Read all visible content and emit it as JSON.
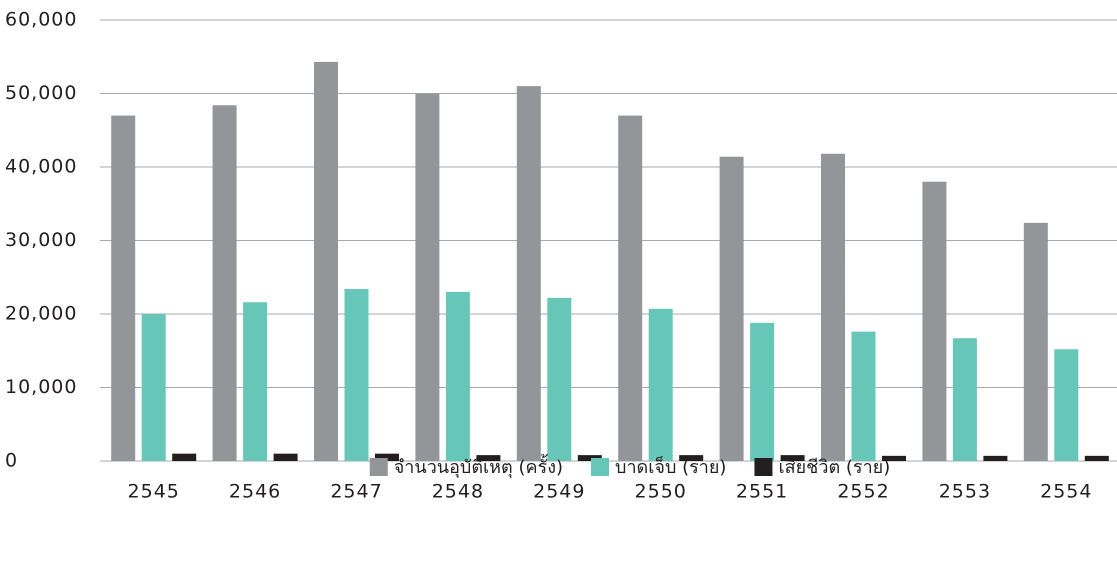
{
  "chart_data": {
    "type": "bar",
    "categories": [
      "2545",
      "2546",
      "2547",
      "2548",
      "2549",
      "2550",
      "2551",
      "2552",
      "2553",
      "2554"
    ],
    "series": [
      {
        "name": "จำนวนอุบัติเหตุ (ครั้ง)",
        "color": "#939598",
        "values": [
          47000,
          48400,
          54300,
          50000,
          51000,
          47000,
          41400,
          41800,
          38000,
          32400
        ]
      },
      {
        "name": "บาดเจ็บ (ราย)",
        "color": "#66c7b8",
        "values": [
          20000,
          21600,
          23400,
          23000,
          22200,
          20700,
          18800,
          17600,
          16700,
          15200
        ]
      },
      {
        "name": "เสียชีวิต (ราย)",
        "color": "#231f20",
        "values": [
          1000,
          1000,
          1000,
          800,
          800,
          800,
          800,
          700,
          700,
          700
        ]
      }
    ],
    "ylim": [
      0,
      60000
    ],
    "yticks": [
      0,
      {
        "value": 10000,
        "label": "10,000"
      },
      {
        "value": 20000,
        "label": "20,000"
      },
      {
        "value": 30000,
        "label": "30,000"
      },
      {
        "value": 40000,
        "label": "40,000"
      },
      {
        "value": 50000,
        "label": "50,000"
      },
      {
        "value": 60000,
        "label": "60,000"
      }
    ],
    "grid": true,
    "legend": "bottom"
  }
}
